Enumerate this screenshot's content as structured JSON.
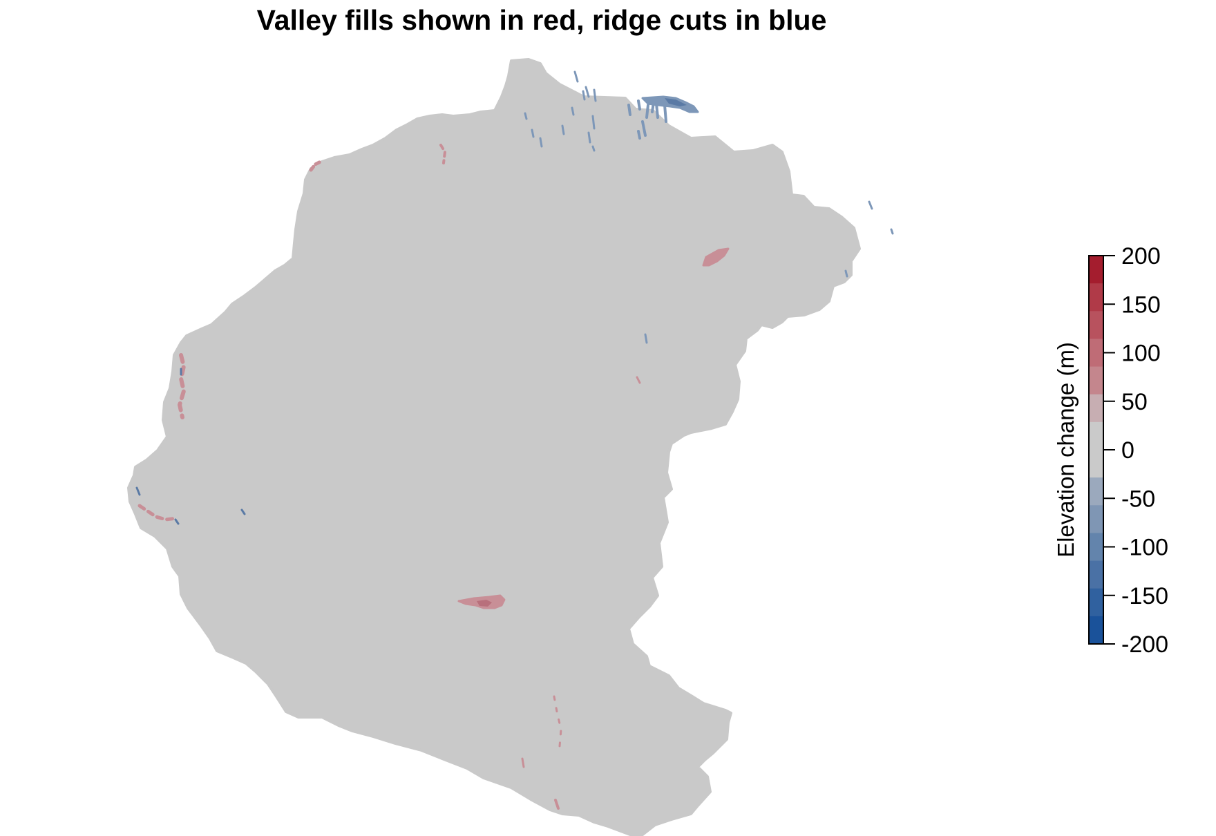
{
  "title": "Valley fills shown in red, ridge cuts in blue",
  "map": {
    "background_color": "#ffffff",
    "land_color": "#c9c9c9",
    "fill_color": "#c88f97",
    "fill_dark_color": "#b8707c",
    "cut_color": "#7d97b8",
    "cut_dark_color": "#5a7aa5"
  },
  "legend": {
    "label": "Elevation change (m)",
    "ticks": [
      "200",
      "150",
      "100",
      "50",
      "0",
      "-50",
      "-100",
      "-150",
      "-200"
    ],
    "colors": [
      "#a41d2e",
      "#b03a48",
      "#b8525e",
      "#bf6c76",
      "#c4868d",
      "#c7aeb2",
      "#cacaca",
      "#cacaca",
      "#9ba9bd",
      "#7f96b4",
      "#6384ac",
      "#4a71a5",
      "#30619f",
      "#1a529a"
    ]
  }
}
